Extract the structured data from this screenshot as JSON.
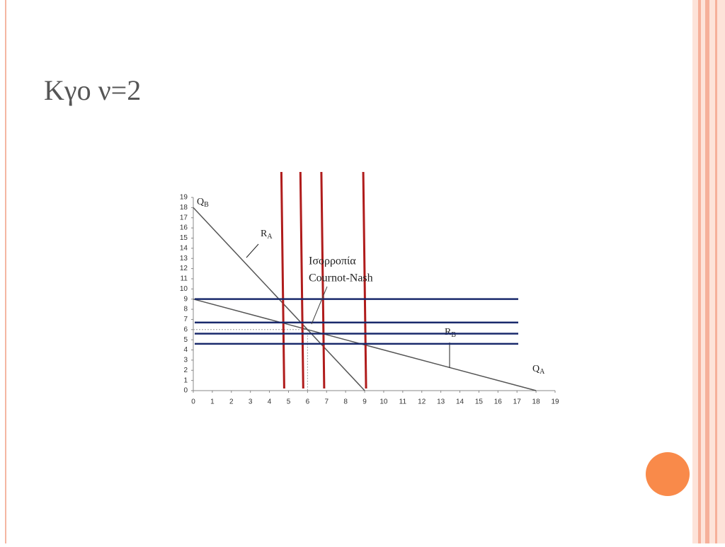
{
  "slide": {
    "title": "Κγο ν=2"
  },
  "chart_data": {
    "type": "line",
    "x_label": "Q",
    "x_label_sub": "A",
    "y_label": "Q",
    "y_label_sub": "B",
    "series": [
      {
        "name": "R",
        "name_sub": "A",
        "color": "#555555",
        "x": [
          0,
          9
        ],
        "values": [
          18,
          0
        ]
      },
      {
        "name": "R",
        "name_sub": "B",
        "color": "#555555",
        "x": [
          0,
          18
        ],
        "values": [
          9,
          0
        ]
      }
    ],
    "annotation": [
      "Ισορροπία",
      "Cournot-Nash"
    ],
    "equilibrium": {
      "x": 6,
      "y": 6
    },
    "vertical_lines": {
      "color": "#b01c1c",
      "values": [
        4.7,
        5.7,
        6.8,
        9
      ]
    },
    "horizontal_lines": {
      "color": "#1a2a6c",
      "values": [
        9,
        6.7,
        5.6,
        4.6
      ]
    },
    "xlim": [
      0,
      19
    ],
    "ylim": [
      0,
      19
    ],
    "xticks": [
      0,
      1,
      2,
      3,
      4,
      5,
      6,
      7,
      8,
      9,
      10,
      11,
      12,
      13,
      14,
      15,
      16,
      17,
      18,
      19
    ],
    "yticks": [
      0,
      1,
      2,
      3,
      4,
      5,
      6,
      7,
      8,
      9,
      10,
      11,
      12,
      13,
      14,
      15,
      16,
      17,
      18,
      19
    ]
  }
}
